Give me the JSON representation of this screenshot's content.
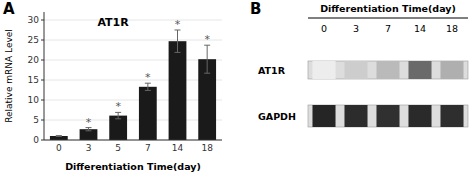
{
  "chart_data": [
    {
      "type": "bar",
      "title": "AT1R",
      "categories": [
        "0",
        "3",
        "5",
        "7",
        "14",
        "18"
      ],
      "values": [
        1.0,
        2.7,
        6.1,
        13.3,
        24.7,
        20.2
      ],
      "errors": [
        0.1,
        0.4,
        0.8,
        0.9,
        2.8,
        3.5
      ],
      "color": "#1a1a1a",
      "x_label": "Differentiation Time(day)",
      "y_label": "Relative mRNA Level",
      "ylim": [
        0,
        32
      ],
      "yticks": [
        0,
        5,
        10,
        15,
        20,
        25,
        30
      ],
      "annotations": [
        {
          "text": "A"
        },
        {
          "text": "*",
          "category": "3"
        },
        {
          "text": "*",
          "category": "5"
        },
        {
          "text": "*",
          "category": "7"
        },
        {
          "text": "*",
          "category": "14"
        },
        {
          "text": "*",
          "category": "18"
        }
      ]
    },
    {
      "type": "heatmap",
      "title": "Differentiation Time(day)",
      "categories": [
        "0",
        "3",
        "7",
        "14",
        "18"
      ],
      "rows": [
        "AT1R",
        "GAPDH"
      ],
      "cells": [
        [
          0.08,
          0.22,
          0.3,
          0.65,
          0.35
        ],
        [
          0.95,
          0.92,
          0.9,
          0.93,
          0.91
        ]
      ],
      "annotations": [
        {
          "text": "B"
        }
      ]
    }
  ]
}
